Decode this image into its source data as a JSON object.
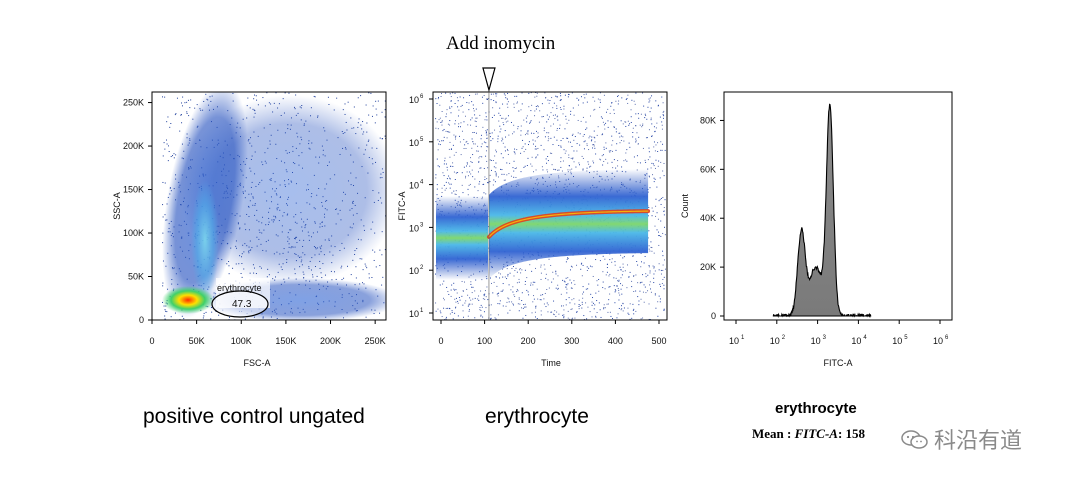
{
  "annotation": "Add inomycin",
  "captions": {
    "left": "positive control  ungated",
    "middle": "erythrocyte",
    "right_title": "erythrocyte",
    "mean_prefix": "Mean : ",
    "mean_param": "FITC-A",
    "mean_value": ": 158"
  },
  "watermark": "科沿有道",
  "chart_data": [
    {
      "type": "scatter",
      "plot": "density",
      "xlabel": "FSC-A",
      "ylabel": "SSC-A",
      "xticks": [
        "0",
        "50K",
        "100K",
        "150K",
        "200K",
        "250K"
      ],
      "yticks": [
        "0",
        "50K",
        "100K",
        "150K",
        "200K",
        "250K"
      ],
      "xlim": [
        0,
        262144
      ],
      "ylim": [
        0,
        262144
      ],
      "gate": {
        "name": "erythrocyte",
        "percent": "47.3"
      }
    },
    {
      "type": "scatter",
      "plot": "density",
      "xlabel": "Time",
      "ylabel": "FITC-A",
      "xticks": [
        "0",
        "100",
        "200",
        "300",
        "400",
        "500"
      ],
      "yticks": [
        "10",
        "10",
        "10",
        "10",
        "10",
        "10"
      ],
      "ytick_exp": [
        "1",
        "2",
        "3",
        "4",
        "5",
        "6"
      ],
      "yscale": "log",
      "xlim": [
        0,
        500
      ],
      "ylim": [
        10,
        1000000
      ],
      "event_time": 110,
      "trend": {
        "baseline": 400,
        "after_event_start": 600,
        "plateau": 2500
      }
    },
    {
      "type": "area",
      "plot": "histogram",
      "xlabel": "FITC-A",
      "ylabel": "Count",
      "xticks": [
        "10",
        "10",
        "10",
        "10",
        "10",
        "10"
      ],
      "xtick_exp": [
        "1",
        "2",
        "3",
        "4",
        "5",
        "6"
      ],
      "yticks": [
        "0",
        "20K",
        "40K",
        "60K",
        "80K"
      ],
      "xscale": "log",
      "ylim": [
        0,
        90000
      ],
      "peaks": [
        {
          "x": 400,
          "count": 40000
        },
        {
          "x": 2000,
          "count": 85000
        }
      ]
    }
  ]
}
